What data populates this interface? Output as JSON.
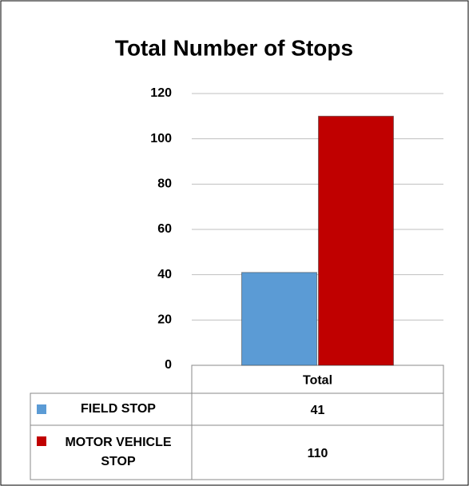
{
  "chart_data": {
    "type": "bar",
    "title": "Total Number of Stops",
    "categories": [
      "Total"
    ],
    "series": [
      {
        "name": "FIELD STOP",
        "color": "#5b9bd5",
        "values": [
          41
        ]
      },
      {
        "name": "MOTOR VEHICLE STOP",
        "color": "#c00000",
        "values": [
          110
        ]
      }
    ],
    "ylim": [
      0,
      120
    ],
    "yticks": [
      0,
      20,
      40,
      60,
      80,
      100,
      120
    ],
    "grid": true,
    "data_table": true
  }
}
